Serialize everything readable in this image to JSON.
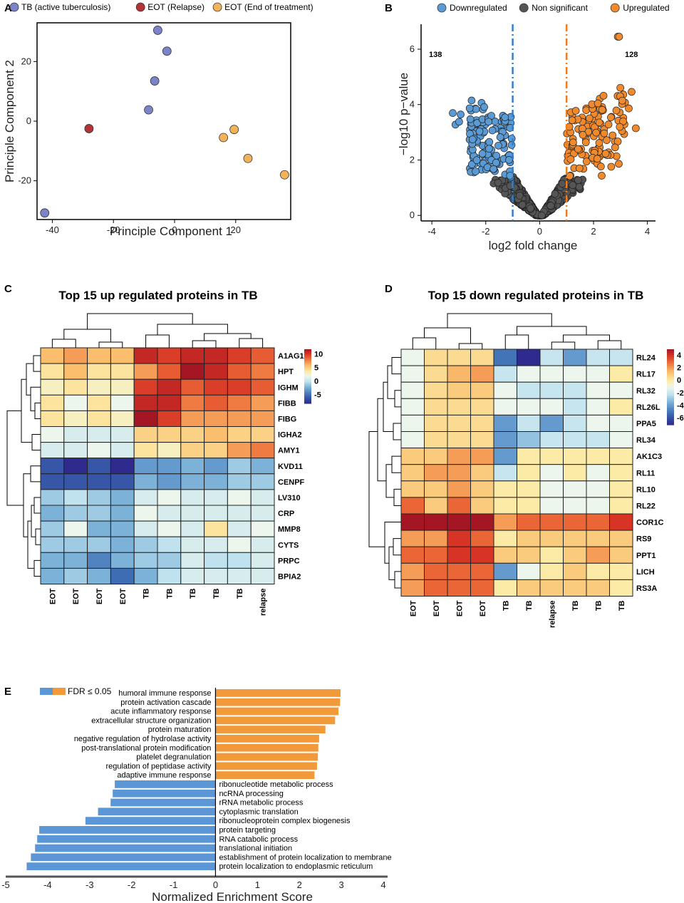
{
  "panels": {
    "a": "A",
    "b": "B",
    "c": "C",
    "d": "D",
    "e": "E"
  },
  "colors": {
    "tb": "#7b83c9",
    "relapse": "#b23434",
    "eot": "#f2b25c",
    "down": "#5b9bd5",
    "nonsig": "#555555",
    "up": "#f08a2c",
    "gsea_up": "#f29a3a",
    "gsea_down": "#5b97d6"
  },
  "chart_data": [
    {
      "id": "pca",
      "type": "scatter",
      "xlabel": "Principle Component 1",
      "ylabel": "Principle Component 2",
      "xlim": [
        -45,
        38
      ],
      "ylim": [
        -33,
        33
      ],
      "xticks": [
        -40,
        -20,
        0,
        20
      ],
      "yticks": [
        -20,
        0,
        20
      ],
      "legend": [
        {
          "key": "tb",
          "label": "TB (active tuberculosis)"
        },
        {
          "key": "relapse",
          "label": "EOT (Relapse)"
        },
        {
          "key": "eot",
          "label": "EOT (End of treatment)"
        }
      ],
      "points": [
        {
          "x": -5.5,
          "y": 30.5,
          "g": "tb"
        },
        {
          "x": -2.5,
          "y": 23.5,
          "g": "tb"
        },
        {
          "x": -6.5,
          "y": 13.5,
          "g": "tb"
        },
        {
          "x": -8.5,
          "y": 3.8,
          "g": "tb"
        },
        {
          "x": -42.5,
          "y": -30.8,
          "g": "tb"
        },
        {
          "x": -28,
          "y": -2.5,
          "g": "relapse"
        },
        {
          "x": 19.5,
          "y": -2.8,
          "g": "eot"
        },
        {
          "x": 16,
          "y": -5.5,
          "g": "eot"
        },
        {
          "x": 24,
          "y": -12.5,
          "g": "eot"
        },
        {
          "x": 36,
          "y": -18,
          "g": "eot"
        }
      ]
    },
    {
      "id": "volcano",
      "type": "scatter",
      "xlabel": "log2 fold change",
      "ylabel": "−log10 p−value",
      "xlim": [
        -4.4,
        4.3
      ],
      "ylim": [
        -0.2,
        6.9
      ],
      "xticks": [
        -4,
        -2,
        0,
        2,
        4
      ],
      "yticks": [
        0,
        2,
        4,
        6
      ],
      "thresholds": [
        -1,
        1
      ],
      "count_down": "138",
      "count_up": "128",
      "legend": [
        {
          "key": "down",
          "label": "Downregulated"
        },
        {
          "key": "nonsig",
          "label": "Non significant"
        },
        {
          "key": "up",
          "label": "Upregulated"
        }
      ]
    },
    {
      "id": "heat_up",
      "type": "heatmap",
      "title": "Top 15 up regulated proteins in TB",
      "rows": [
        "A1AG1",
        "HPT",
        "IGHM",
        "FIBB",
        "FIBG",
        "IGHA2",
        "AMY1",
        "KVD11",
        "CENPF",
        "LV310",
        "CRP",
        "MMP8",
        "CYTS",
        "PRPC",
        "BPIA2"
      ],
      "cols": [
        "EOT",
        "EOT",
        "EOT",
        "EOT",
        "TB",
        "TB",
        "TB",
        "TB",
        "TB",
        "relapse"
      ],
      "legend_ticks": [
        10,
        5,
        0,
        -5
      ],
      "vmin": -8,
      "vmax": 12,
      "values": [
        [
          6,
          7,
          6,
          6,
          11,
          10,
          11,
          11,
          10,
          9
        ],
        [
          4,
          6,
          4,
          4,
          7,
          9,
          12,
          11,
          9,
          8
        ],
        [
          3,
          4,
          3,
          3,
          10,
          11,
          9,
          10,
          10,
          9
        ],
        [
          4,
          2,
          4,
          2,
          11,
          11,
          8,
          9,
          8,
          7
        ],
        [
          4,
          3,
          4,
          3,
          12,
          10,
          7,
          7,
          7,
          7
        ],
        [
          2,
          1,
          1,
          1,
          5,
          5,
          5,
          6,
          5,
          5
        ],
        [
          1,
          1,
          2,
          1,
          4,
          3,
          5,
          5,
          7,
          8
        ],
        [
          -6,
          -8,
          -6,
          -8,
          -3,
          -3,
          -2,
          -3,
          -1,
          -2
        ],
        [
          -6,
          -6,
          -6,
          -6,
          -2,
          -3,
          -2,
          -2,
          -1,
          -1
        ],
        [
          -1,
          0,
          -1,
          -2,
          1,
          2,
          1,
          1,
          2,
          1
        ],
        [
          -2,
          -1,
          -1,
          -2,
          2,
          1,
          1,
          1,
          1,
          1
        ],
        [
          -1,
          2,
          -2,
          -2,
          1,
          2,
          1,
          4,
          1,
          2
        ],
        [
          -1,
          -1,
          -1,
          -2,
          -1,
          0,
          1,
          1,
          2,
          1
        ],
        [
          -2,
          -2,
          -4,
          -2,
          -1,
          -1,
          1,
          0,
          0,
          1
        ],
        [
          -2,
          -1,
          -2,
          -5,
          -2,
          0,
          1,
          1,
          1,
          1
        ]
      ]
    },
    {
      "id": "heat_down",
      "type": "heatmap",
      "title": "Top 15 down regulated proteins in TB",
      "rows": [
        "RL24",
        "RL17",
        "RL32",
        "RL26L",
        "PPA5",
        "RL34",
        "AK1C3",
        "RL11",
        "RL10",
        "RL22",
        "COR1C",
        "RS9",
        "PPT1",
        "LICH",
        "RS3A"
      ],
      "cols": [
        "EOT",
        "EOT",
        "EOT",
        "EOT",
        "TB",
        "TB",
        "relapse",
        "TB",
        "TB",
        "TB"
      ],
      "legend_ticks": [
        4,
        2,
        0,
        -2,
        -4,
        -6
      ],
      "vmin": -7,
      "vmax": 5,
      "values": [
        [
          -1,
          0.5,
          0.5,
          0.5,
          -5,
          -7,
          -2,
          -4,
          -2,
          -2
        ],
        [
          -1,
          0.5,
          1.5,
          2,
          -2,
          -1,
          -1,
          -1,
          -1,
          0
        ],
        [
          -1,
          0.5,
          1,
          1,
          -1,
          -2,
          -2,
          -2,
          -1,
          -1
        ],
        [
          -1,
          0.5,
          0.5,
          0.5,
          -1,
          -1,
          -1,
          -2,
          -1,
          0
        ],
        [
          -1,
          0.5,
          0.5,
          0.5,
          -4,
          -2,
          -4,
          -2,
          -1,
          -1
        ],
        [
          -1,
          0.5,
          0.5,
          0.5,
          -4,
          -3,
          -2,
          -2,
          -2,
          -1
        ],
        [
          1,
          1,
          2,
          2,
          -4,
          0,
          0,
          0,
          0,
          0
        ],
        [
          1,
          2,
          2,
          1,
          -2,
          0,
          -1,
          0,
          -1,
          0
        ],
        [
          1,
          1,
          2,
          1,
          0,
          0,
          -1,
          -1,
          -1,
          0
        ],
        [
          3,
          1,
          3,
          1,
          0,
          0,
          -1,
          -1,
          -1,
          0
        ],
        [
          5,
          5,
          5,
          5,
          2,
          3,
          3,
          3,
          3,
          4
        ],
        [
          2,
          2,
          4,
          3,
          0,
          1,
          1,
          1,
          1,
          1
        ],
        [
          3,
          3,
          4,
          4,
          1,
          1,
          0,
          1,
          2,
          1
        ],
        [
          2,
          3,
          3,
          3,
          -4,
          -1,
          0,
          1,
          0,
          0
        ],
        [
          2,
          3,
          3,
          3,
          0,
          1,
          1,
          1,
          1,
          0
        ]
      ]
    },
    {
      "id": "gsea",
      "type": "bar",
      "xlabel": "Normalized Enrichment Score",
      "xlim": [
        -5,
        4
      ],
      "xticks": [
        -5,
        -4,
        -3,
        -2,
        -1,
        0,
        1,
        2,
        3,
        4
      ],
      "legend_label": "FDR ≤ 0.05",
      "up": [
        {
          "term": "humoral immune response",
          "nes": 2.98
        },
        {
          "term": "protein activation cascade",
          "nes": 2.97
        },
        {
          "term": "acute inflammatory response",
          "nes": 2.93
        },
        {
          "term": "extracellular structure organization",
          "nes": 2.85
        },
        {
          "term": "protein maturation",
          "nes": 2.62
        },
        {
          "term": "negative regulation of hydrolase activity",
          "nes": 2.47
        },
        {
          "term": "post-translational protein modification",
          "nes": 2.45
        },
        {
          "term": "platelet degranulation",
          "nes": 2.44
        },
        {
          "term": "regulation of peptidase activity",
          "nes": 2.42
        },
        {
          "term": "adaptive immune response",
          "nes": 2.36
        }
      ],
      "down": [
        {
          "term": "ribonucleotide metabolic process",
          "nes": -2.4
        },
        {
          "term": "ncRNA processing",
          "nes": -2.45
        },
        {
          "term": "rRNA metabolic process",
          "nes": -2.5
        },
        {
          "term": "cytoplasmic translation",
          "nes": -2.8
        },
        {
          "term": "ribonucleoprotein complex biogenesis",
          "nes": -3.1
        },
        {
          "term": "protein targeting",
          "nes": -4.2
        },
        {
          "term": "RNA catabolic process",
          "nes": -4.25
        },
        {
          "term": "translational initiation",
          "nes": -4.3
        },
        {
          "term": "establishment of protein localization to membrane",
          "nes": -4.4
        },
        {
          "term": "protein localization to endoplasmic reticulum",
          "nes": -4.5
        }
      ]
    }
  ]
}
